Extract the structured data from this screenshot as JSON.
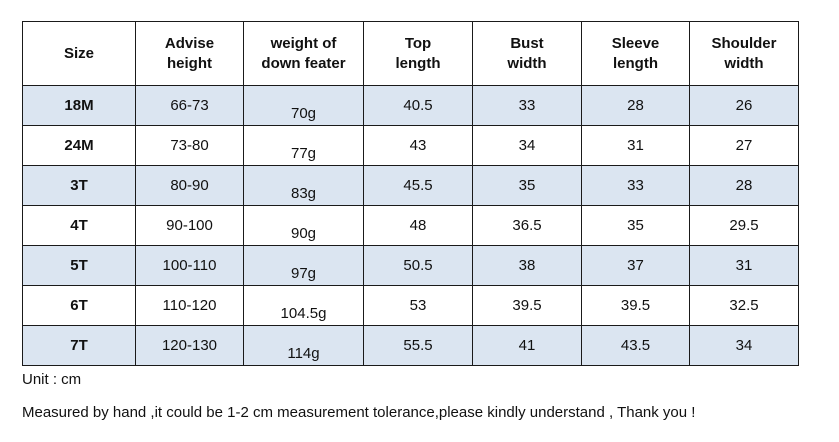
{
  "table": {
    "headers": [
      [
        "Size"
      ],
      [
        "Advise",
        "height"
      ],
      [
        "weight of",
        "down feater"
      ],
      [
        "Top",
        "length"
      ],
      [
        "Bust",
        "width"
      ],
      [
        "Sleeve",
        "length"
      ],
      [
        "Shoulder",
        "width"
      ]
    ],
    "rows": [
      [
        "18M",
        "66-73",
        "70g",
        "40.5",
        "33",
        "28",
        "26"
      ],
      [
        "24M",
        "73-80",
        "77g",
        "43",
        "34",
        "31",
        "27"
      ],
      [
        "3T",
        "80-90",
        "83g",
        "45.5",
        "35",
        "33",
        "28"
      ],
      [
        "4T",
        "90-100",
        "90g",
        "48",
        "36.5",
        "35",
        "29.5"
      ],
      [
        "5T",
        "100-110",
        "97g",
        "50.5",
        "38",
        "37",
        "31"
      ],
      [
        "6T",
        "110-120",
        "104.5g",
        "53",
        "39.5",
        "39.5",
        "32.5"
      ],
      [
        "7T",
        "120-130",
        "114g",
        "55.5",
        "41",
        "43.5",
        "34"
      ]
    ]
  },
  "notes": {
    "unit": "Unit : cm",
    "disclaimer": "Measured by hand ,it could be 1-2 cm measurement tolerance,please kindly understand , Thank you !"
  },
  "colors": {
    "shaded_row": "#dbe5f1",
    "border": "#1a1a1a"
  }
}
